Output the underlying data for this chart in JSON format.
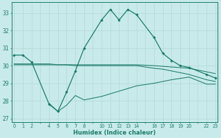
{
  "xlabel": "Humidex (Indice chaleur)",
  "background_color": "#c8eaea",
  "grid_color": "#b0d8d8",
  "line_color": "#1a7a6a",
  "xlim": [
    -0.3,
    23.3
  ],
  "ylim": [
    26.8,
    33.6
  ],
  "yticks": [
    27,
    28,
    29,
    30,
    31,
    32,
    33
  ],
  "xticks_major": [
    0,
    1,
    2,
    4,
    5,
    6,
    7,
    8,
    10,
    11,
    12,
    13,
    14,
    16,
    17,
    18,
    19,
    20,
    22,
    23
  ],
  "line1_x": [
    0,
    1,
    2,
    4,
    5,
    6,
    7,
    8,
    10,
    11,
    12,
    13,
    14,
    16,
    17,
    18,
    19,
    20,
    22,
    23
  ],
  "line1_y": [
    30.6,
    30.6,
    30.2,
    27.8,
    27.4,
    28.5,
    29.7,
    31.0,
    32.6,
    33.2,
    32.6,
    33.2,
    32.9,
    31.6,
    30.7,
    30.3,
    30.0,
    29.9,
    29.5,
    29.3
  ],
  "line2_x": [
    0,
    1,
    2,
    4,
    5,
    6,
    7,
    8,
    10,
    11,
    12,
    13,
    14,
    16,
    17,
    18,
    19,
    20,
    22,
    23
  ],
  "line2_y": [
    30.1,
    30.1,
    30.1,
    30.1,
    30.05,
    30.05,
    30.0,
    30.0,
    30.0,
    30.0,
    30.0,
    30.0,
    30.0,
    29.85,
    29.8,
    29.7,
    29.6,
    29.5,
    29.2,
    29.1
  ],
  "line3_x": [
    0,
    4,
    8,
    10,
    14,
    16,
    20,
    22,
    23
  ],
  "line3_y": [
    30.05,
    30.05,
    30.05,
    30.05,
    30.05,
    30.0,
    29.85,
    29.65,
    29.55
  ],
  "line4_x": [
    4,
    5,
    6,
    7,
    8,
    10,
    12,
    14,
    16,
    18,
    20,
    22,
    23
  ],
  "line4_y": [
    27.85,
    27.4,
    27.75,
    28.3,
    28.05,
    28.25,
    28.55,
    28.85,
    29.0,
    29.2,
    29.35,
    28.95,
    28.95
  ]
}
